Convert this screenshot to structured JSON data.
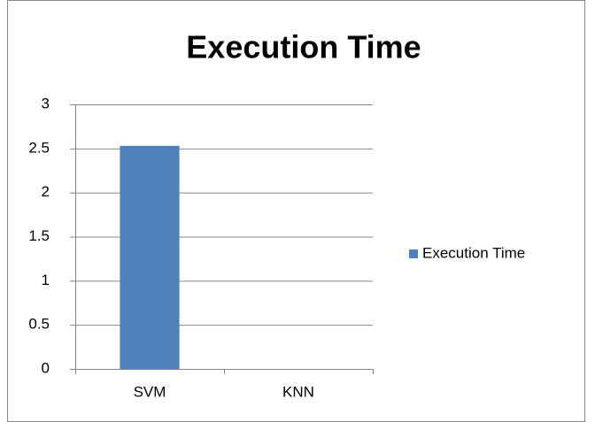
{
  "chart_data": {
    "type": "bar",
    "title": "Execution Time",
    "categories": [
      "SVM",
      "KNN"
    ],
    "series": [
      {
        "name": "Execution Time",
        "color": "#4f81bd",
        "values": [
          2.53,
          0
        ]
      }
    ],
    "ylim": [
      0,
      3
    ],
    "yticks": [
      0,
      0.5,
      1,
      1.5,
      2,
      2.5,
      3
    ],
    "grid": true,
    "legend": "right"
  }
}
